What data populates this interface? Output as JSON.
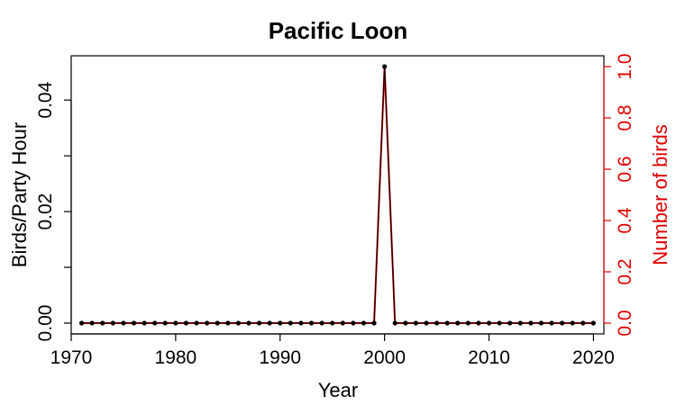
{
  "chart_data": {
    "type": "line",
    "title": "Pacific Loon",
    "xlabel": "Year",
    "ylabel": "Birds/Party Hour",
    "y2label": "Number of birds",
    "xlim": [
      1970,
      2021
    ],
    "ylim": [
      0,
      0.046
    ],
    "y2lim": [
      0,
      1.0
    ],
    "x_ticks": [
      "1970",
      "1980",
      "1990",
      "2000",
      "2010",
      "2020"
    ],
    "y_ticks": [
      "0.00",
      "0.02",
      "0.04"
    ],
    "y2_ticks": [
      "0.0",
      "0.2",
      "0.4",
      "0.6",
      "0.8",
      "1.0"
    ],
    "grid": false,
    "colors": {
      "left_axis": "#000000",
      "right_axis": "#e00000",
      "line_count": "#cc0000",
      "line_rate": "#000000",
      "points": "#000000"
    },
    "x": [
      1971,
      1972,
      1973,
      1974,
      1975,
      1976,
      1977,
      1978,
      1979,
      1980,
      1981,
      1982,
      1983,
      1984,
      1985,
      1986,
      1987,
      1988,
      1989,
      1990,
      1991,
      1992,
      1993,
      1994,
      1995,
      1996,
      1997,
      1998,
      1999,
      2000,
      2001,
      2002,
      2003,
      2004,
      2005,
      2006,
      2007,
      2008,
      2009,
      2010,
      2011,
      2012,
      2013,
      2014,
      2015,
      2016,
      2017,
      2018,
      2019,
      2020
    ],
    "series": [
      {
        "axis": "left",
        "values": [
          0,
          0,
          0,
          0,
          0,
          0,
          0,
          0,
          0,
          0,
          0,
          0,
          0,
          0,
          0,
          0,
          0,
          0,
          0,
          0,
          0,
          0,
          0,
          0,
          0,
          0,
          0,
          0,
          0,
          0.046,
          0,
          0,
          0,
          0,
          0,
          0,
          0,
          0,
          0,
          0,
          0,
          0,
          0,
          0,
          0,
          0,
          0,
          0,
          0,
          0
        ]
      },
      {
        "axis": "right",
        "values": [
          0,
          0,
          0,
          0,
          0,
          0,
          0,
          0,
          0,
          0,
          0,
          0,
          0,
          0,
          0,
          0,
          0,
          0,
          0,
          0,
          0,
          0,
          0,
          0,
          0,
          0,
          0,
          0,
          0,
          1,
          0,
          0,
          0,
          0,
          0,
          0,
          0,
          0,
          0,
          0,
          0,
          0,
          0,
          0,
          0,
          0,
          0,
          0,
          0,
          0
        ]
      }
    ]
  }
}
